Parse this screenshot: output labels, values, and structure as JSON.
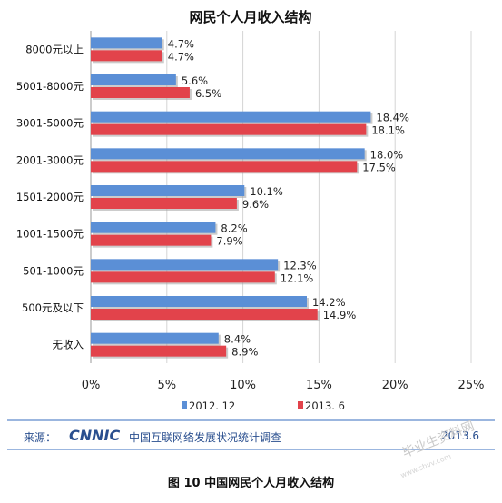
{
  "chart_data": {
    "type": "bar",
    "orientation": "horizontal",
    "title": "网民个人月收入结构",
    "categories": [
      "8000元以上",
      "5001-8000元",
      "3001-5000元",
      "2001-3000元",
      "1501-2000元",
      "1001-1500元",
      "501-1000元",
      "500元及以下",
      "无收入"
    ],
    "series": [
      {
        "name": "2012. 12",
        "color": "#5b8fd6",
        "values": [
          4.7,
          5.6,
          18.4,
          18.0,
          10.1,
          8.2,
          12.3,
          14.2,
          8.4
        ],
        "labels": [
          "4.7%",
          "5.6%",
          "18.4%",
          "18.0%",
          "10.1%",
          "8.2%",
          "12.3%",
          "14.2%",
          "8.4%"
        ]
      },
      {
        "name": "2013. 6",
        "color": "#e2434b",
        "values": [
          4.7,
          6.5,
          18.1,
          17.5,
          9.6,
          7.9,
          12.1,
          14.9,
          8.9
        ],
        "labels": [
          "4.7%",
          "6.5%",
          "18.1%",
          "17.5%",
          "9.6%",
          "7.9%",
          "12.1%",
          "14.9%",
          "8.9%"
        ]
      }
    ],
    "x_ticks": [
      "0%",
      "5%",
      "10%",
      "15%",
      "20%",
      "25%"
    ],
    "xlim": [
      0,
      25
    ],
    "grid": true,
    "legend": "bottom"
  },
  "footer": {
    "source_label": "来源：",
    "logo_text": "CNNIC",
    "source_org": "中国互联网络发展状况统计调查",
    "date": "2013.6"
  },
  "caption": "图 10 中国网民个人月收入结构",
  "watermark": {
    "text": "毕业生资料网",
    "url": "www.sbvv.com"
  }
}
